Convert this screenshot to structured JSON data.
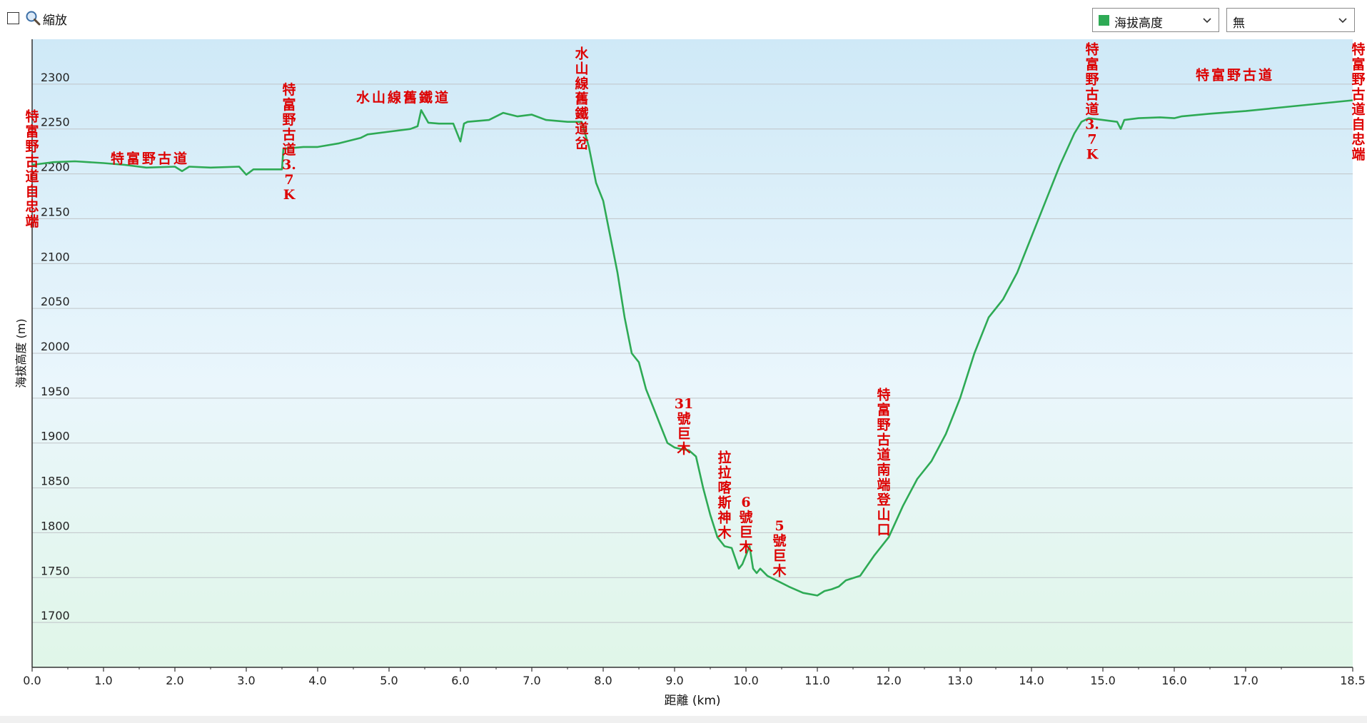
{
  "toolbar": {
    "zoom_label": "縮放",
    "series_select": {
      "value": "海拔高度",
      "swatch_color": "#2eaa55"
    },
    "overlay_select": {
      "value": "無"
    }
  },
  "colors": {
    "line": "#2eaa55",
    "bg_top": "#cfe9f7",
    "bg_mid": "#eaf6fc",
    "bg_bottom": "#e0f6e8",
    "label": "#dd0000",
    "grid": "#c0c4c8",
    "axis": "#333333"
  },
  "chart_data": {
    "type": "area",
    "xlabel": "距離  (km)",
    "ylabel": "海拔高度 (m)",
    "xlim": [
      0,
      18.5
    ],
    "ylim": [
      1650,
      2350
    ],
    "x_ticks": [
      "0.0",
      "1.0",
      "2.0",
      "3.0",
      "4.0",
      "5.0",
      "6.0",
      "7.0",
      "8.0",
      "9.0",
      "10.0",
      "11.0",
      "12.0",
      "13.0",
      "14.0",
      "15.0",
      "16.0",
      "17.0",
      "18.5"
    ],
    "y_ticks": [
      1700,
      1750,
      1800,
      1850,
      1900,
      1950,
      2000,
      2050,
      2100,
      2150,
      2200,
      2250,
      2300
    ],
    "grid": true,
    "series": [
      {
        "name": "海拔高度",
        "x": [
          0,
          0.3,
          0.6,
          1.0,
          1.3,
          1.6,
          2.0,
          2.1,
          2.2,
          2.5,
          2.9,
          3.0,
          3.1,
          3.5,
          3.52,
          3.8,
          4.0,
          4.3,
          4.6,
          4.7,
          5.0,
          5.3,
          5.4,
          5.45,
          5.55,
          5.7,
          5.9,
          6.0,
          6.05,
          6.1,
          6.4,
          6.6,
          6.8,
          7.0,
          7.2,
          7.5,
          7.7,
          7.8,
          7.9,
          8.0,
          8.1,
          8.2,
          8.3,
          8.4,
          8.5,
          8.6,
          8.7,
          8.8,
          8.9,
          9.0,
          9.1,
          9.2,
          9.3,
          9.4,
          9.5,
          9.6,
          9.7,
          9.8,
          9.9,
          9.95,
          10.05,
          10.1,
          10.15,
          10.2,
          10.3,
          10.4,
          10.6,
          10.8,
          11.0,
          11.1,
          11.2,
          11.3,
          11.4,
          11.6,
          11.8,
          12.0,
          12.2,
          12.4,
          12.6,
          12.8,
          13.0,
          13.2,
          13.4,
          13.6,
          13.8,
          14.0,
          14.2,
          14.4,
          14.6,
          14.7,
          14.8,
          15.0,
          15.2,
          15.25,
          15.3,
          15.5,
          15.8,
          16.0,
          16.1,
          16.5,
          17.0,
          17.5,
          18.0,
          18.5
        ],
        "y": [
          2210,
          2213,
          2214,
          2212,
          2210,
          2207,
          2208,
          2203,
          2208,
          2207,
          2208,
          2199,
          2205,
          2205,
          2228,
          2230,
          2230,
          2234,
          2240,
          2244,
          2247,
          2250,
          2253,
          2271,
          2257,
          2256,
          2256,
          2236,
          2256,
          2258,
          2260,
          2268,
          2264,
          2266,
          2260,
          2258,
          2258,
          2230,
          2190,
          2170,
          2130,
          2090,
          2040,
          2000,
          1990,
          1960,
          1940,
          1920,
          1900,
          1895,
          1893,
          1892,
          1885,
          1850,
          1820,
          1795,
          1785,
          1783,
          1760,
          1765,
          1785,
          1760,
          1755,
          1760,
          1752,
          1748,
          1740,
          1733,
          1730,
          1735,
          1737,
          1740,
          1747,
          1752,
          1775,
          1795,
          1830,
          1860,
          1880,
          1910,
          1950,
          2000,
          2040,
          2060,
          2090,
          2130,
          2170,
          2210,
          2245,
          2258,
          2262,
          2260,
          2258,
          2250,
          2260,
          2262,
          2263,
          2262,
          2264,
          2267,
          2270,
          2274,
          2278,
          2282
        ]
      }
    ],
    "annotations": [
      {
        "text": "特富野古道自忠端",
        "x": 0.0,
        "y": 2270
      },
      {
        "text": "特富野古道",
        "x": 1.65,
        "y": 2212
      },
      {
        "text": "特富野古道3.7K",
        "x": 3.6,
        "y": 2300
      },
      {
        "text": "水山線舊鐵道",
        "x": 5.2,
        "y": 2280
      },
      {
        "text": "水山線舊鐵道岔",
        "x": 7.7,
        "y": 2340
      },
      {
        "text": "31號巨木",
        "x": 9.13,
        "y": 1950
      },
      {
        "text": "拉拉喀斯神木",
        "x": 9.7,
        "y": 1890
      },
      {
        "text": "6號巨木",
        "x": 10.0,
        "y": 1840
      },
      {
        "text": "5號巨木",
        "x": 10.47,
        "y": 1814
      },
      {
        "text": "特富野古道南端登山口",
        "x": 11.93,
        "y": 1960
      },
      {
        "text": "特富野古道3.7K",
        "x": 14.85,
        "y": 2345
      },
      {
        "text": "特富野古道",
        "x": 16.85,
        "y": 2305
      },
      {
        "text": "特富野古道自忠端",
        "x": 18.6,
        "y": 2345
      }
    ]
  }
}
